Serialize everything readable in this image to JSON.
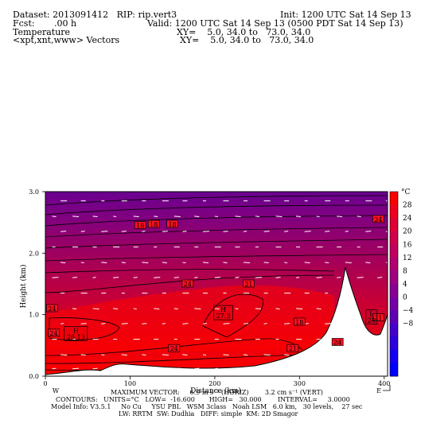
{
  "header": {
    "dataset": "Dataset: 2013091412   RIP: rip.vert3",
    "init": "Init: 1200 UTC Sat 14 Sep 13",
    "fcst": "Fcst:       .00 h",
    "valid": "Valid: 1200 UTC Sat 14 Sep 13 (0500 PDT Sat 14 Sep 13)",
    "field1": "Temperature",
    "xy1": "XY=    5.0, 34.0 to   73.0, 34.0",
    "field2": "<xpt,xnt,www> Vectors",
    "xy2": "XY=    5.0, 34.0 to   73.0, 34.0"
  },
  "chart_data": {
    "type": "heatmap",
    "ylabel": "Height (km)",
    "xlabel": "Distance (km)",
    "xlim": [
      0,
      404
    ],
    "ylim": [
      0,
      3.0
    ],
    "xticks": [
      "0",
      "100",
      "200",
      "300",
      "400"
    ],
    "yticks": [
      "0.0",
      "1.0",
      "2.0",
      "3.0"
    ],
    "x_end_labels": {
      "left": "W",
      "right": "E"
    },
    "colorbar": {
      "unit": "°C",
      "ticks": [
        "28",
        "24",
        "20",
        "16",
        "12",
        "8",
        "4",
        "0",
        "−4",
        "−8"
      ],
      "colors": [
        "#ff0000",
        "#f0001c",
        "#e00034",
        "#d2004a",
        "#c2005e",
        "#b20070",
        "#a00082",
        "#8a0094",
        "#7600a6",
        "#5e00b8",
        "#4400cc",
        "#2c00e0",
        "#1400f2",
        "#0000ff"
      ]
    },
    "contour_labels": [
      "24",
      "18",
      "18",
      "18",
      "24",
      "24",
      "21",
      "24",
      "21",
      "24",
      "24",
      "21",
      "18"
    ],
    "extrema": [
      {
        "kind": "H",
        "value": "26.13"
      },
      {
        "kind": "H",
        "value": "27.3"
      },
      {
        "kind": "L",
        "value": "24"
      }
    ],
    "footer": {
      "max_vector": "MAXIMUM VECTOR:     6.9 m s⁻¹ (HORIZ)        3.2 cm s⁻¹ (VERT)",
      "contours": "CONTOURS:   UNITS=°C   LOW=  -16.600       HIGH=   30.000        INTERVAL=     3.0000",
      "model_info": "Model Info: V3.5.1     No Cu     YSU PBL   WSM 3class   Noah LSM   6.0 km,   30 levels,    27 sec",
      "model_info2": "LW: RRTM  SW: Dudhia   DIFF: simple  KM: 2D Smagor"
    }
  }
}
